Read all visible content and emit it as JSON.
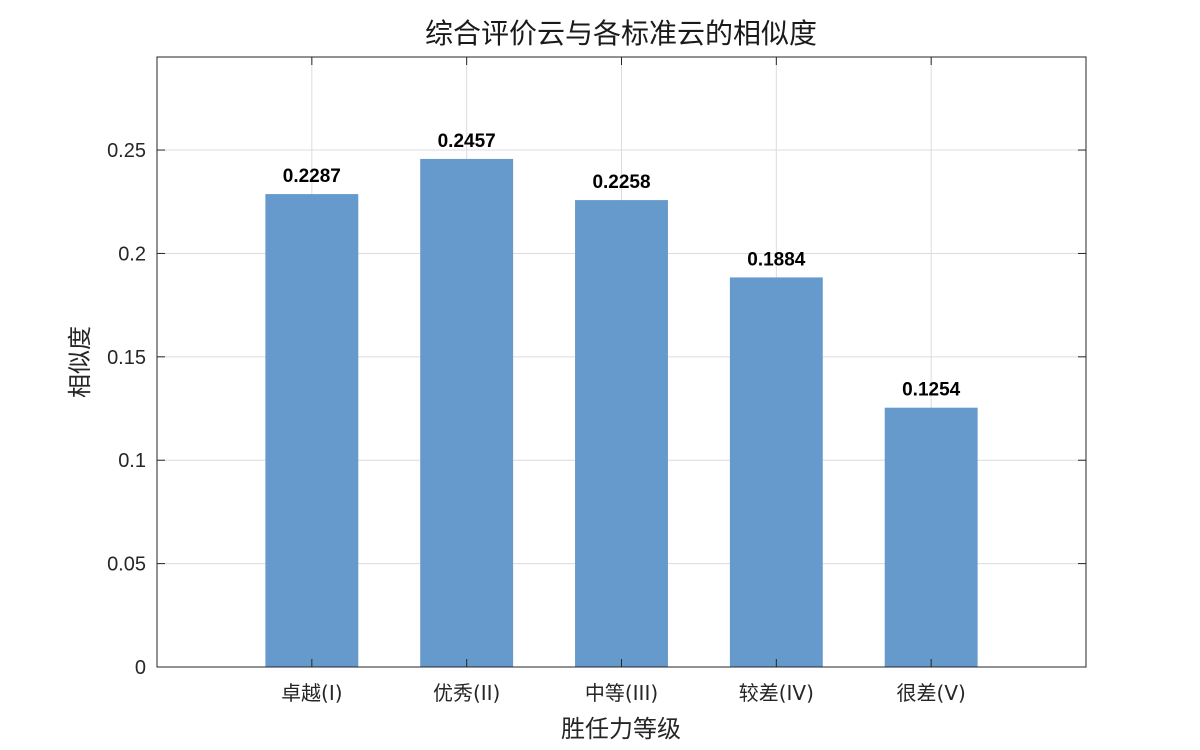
{
  "chart_data": {
    "type": "bar",
    "title": "综合评价云与各标准云的相似度",
    "xlabel": "胜任力等级",
    "ylabel": "相似度",
    "categories": [
      "卓越(I)",
      "优秀(II)",
      "中等(III)",
      "较差(IV)",
      "很差(V)"
    ],
    "values": [
      0.2287,
      0.2457,
      0.2258,
      0.1884,
      0.1254
    ],
    "data_labels": [
      "0.2287",
      "0.2457",
      "0.2258",
      "0.1884",
      "0.1254"
    ],
    "ylim": [
      0,
      0.295
    ],
    "xlim": [
      0,
      6
    ],
    "yticks": [
      0,
      0.05,
      0.1,
      0.15,
      0.2,
      0.25
    ],
    "ytick_labels": [
      "0",
      "0.05",
      "0.1",
      "0.15",
      "0.2",
      "0.25"
    ],
    "grid": true,
    "bar_color": "#6699cc"
  }
}
